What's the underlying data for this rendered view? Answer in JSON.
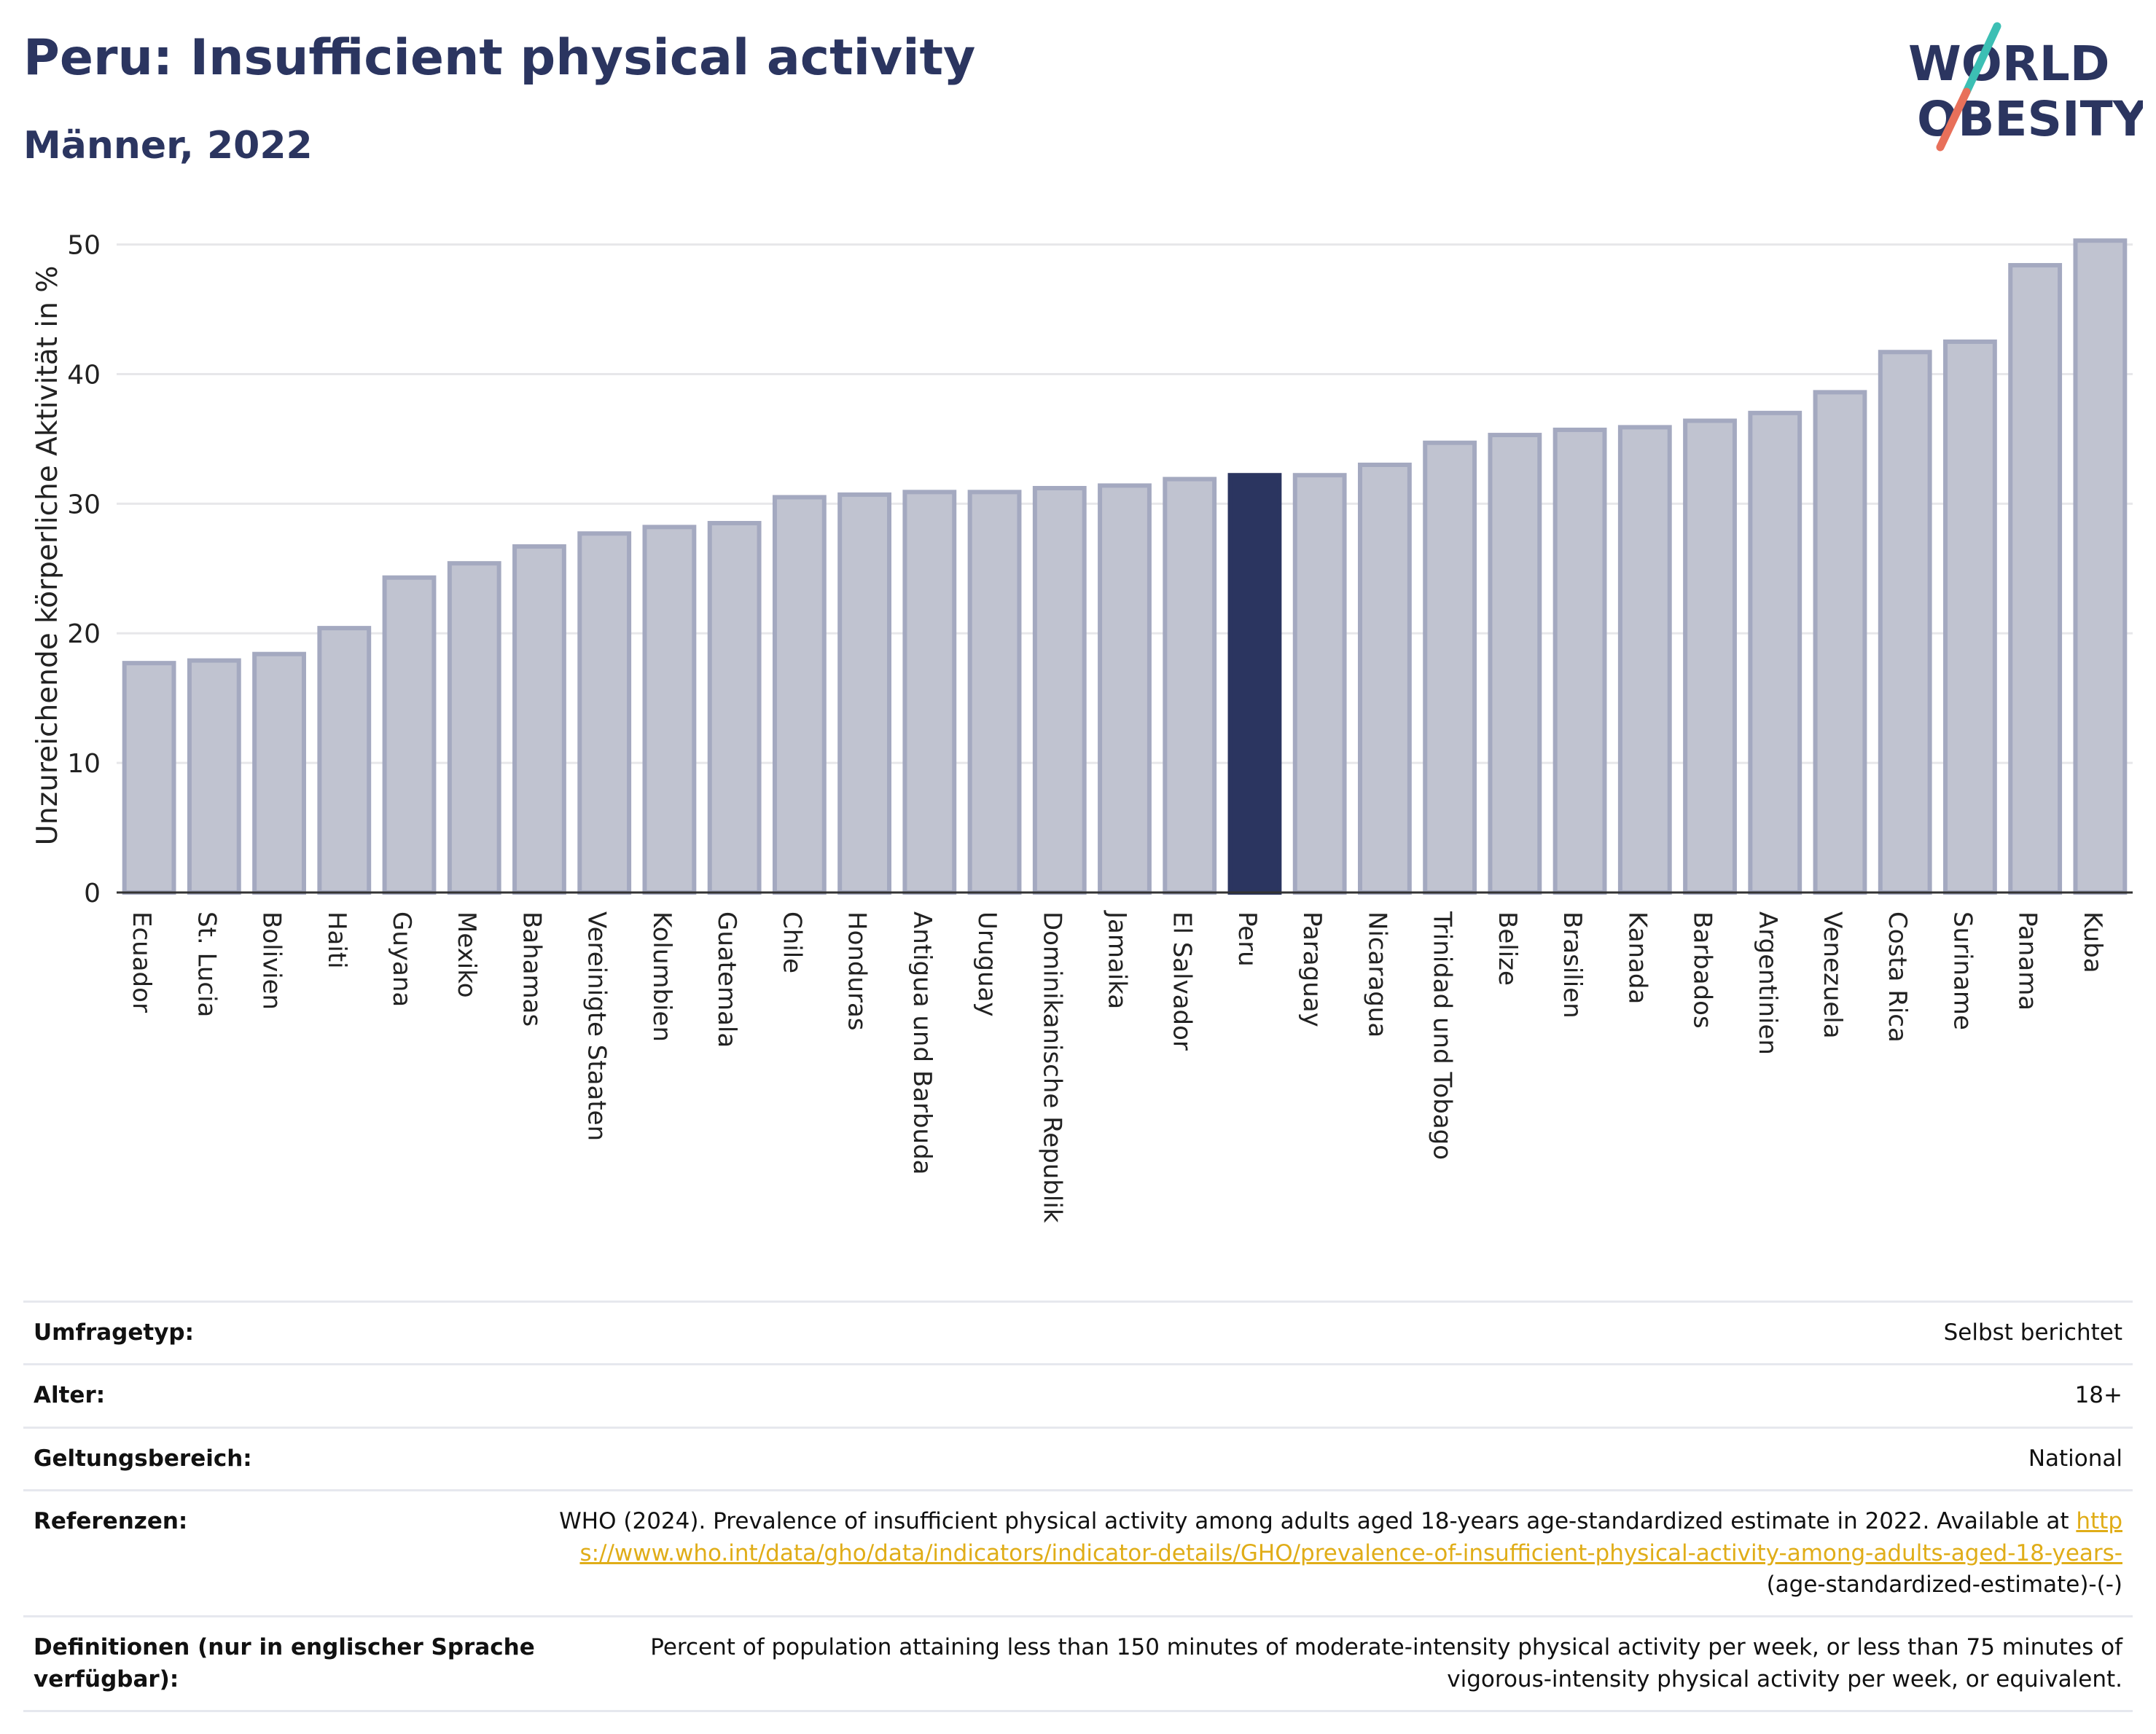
{
  "header": {
    "title": "Peru: Insufficient physical activity",
    "subtitle": "Männer, 2022"
  },
  "logo": {
    "line1": "WORLD",
    "line2": "OBESITY",
    "colors": {
      "text": "#2b3560",
      "slash_top": "#3cbfb4",
      "slash_bottom": "#e8705a"
    }
  },
  "chart_data": {
    "type": "bar",
    "title": "Peru: Insufficient physical activity",
    "subtitle": "Männer, 2022",
    "ylabel": "Unzureichende körperliche Aktivität in %",
    "xlabel": "",
    "ylim": [
      0,
      52
    ],
    "yticks": [
      0,
      10,
      20,
      30,
      40,
      50
    ],
    "grid": true,
    "highlight": "Peru",
    "colors": {
      "bar": "#c0c3d0",
      "bar_edge": "#a4a9c0",
      "highlight": "#2b3560"
    },
    "categories": [
      "Ecuador",
      "St. Lucia",
      "Bolivien",
      "Haiti",
      "Guyana",
      "Mexiko",
      "Bahamas",
      "Vereinigte Staaten",
      "Kolumbien",
      "Guatemala",
      "Chile",
      "Honduras",
      "Antigua und Barbuda",
      "Uruguay",
      "Dominikanische Republik",
      "Jamaika",
      "El Salvador",
      "Peru",
      "Paraguay",
      "Nicaragua",
      "Trinidad und Tobago",
      "Belize",
      "Brasilien",
      "Kanada",
      "Barbados",
      "Argentinien",
      "Venezuela",
      "Costa Rica",
      "Suriname",
      "Panama",
      "Kuba"
    ],
    "values": [
      17.7,
      17.9,
      18.4,
      20.4,
      24.3,
      25.4,
      26.7,
      27.7,
      28.2,
      28.5,
      30.5,
      30.7,
      30.9,
      30.9,
      31.2,
      31.4,
      31.9,
      32.2,
      32.2,
      33.0,
      34.7,
      35.3,
      35.7,
      35.9,
      36.4,
      37.0,
      38.6,
      41.7,
      42.5,
      48.4,
      50.3
    ]
  },
  "meta": {
    "rows": [
      {
        "label": "Umfragetyp:",
        "value": "Selbst berichtet"
      },
      {
        "label": "Alter:",
        "value": "18+"
      },
      {
        "label": "Geltungsbereich:",
        "value": "National"
      }
    ],
    "reference": {
      "label": "Referenzen:",
      "text": "WHO (2024). Prevalence of insufficient physical activity among adults aged 18-years age-standardized estimate in 2022. Available at",
      "link": "https://www.who.int/data/gho/data/indicators/indicator-details/GHO/prevalence-of-insufficient-physical-activity-among-adults-aged-18-years-",
      "suffix": "(age-standardized-estimate)-(-)"
    },
    "definition": {
      "label": "Definitionen (nur in englischer Sprache verfügbar):",
      "value": "Percent of population attaining less than 150 minutes of moderate-intensity physical activity per week, or less than 75 minutes of vigorous-intensity physical activity per week, or equivalent."
    }
  }
}
